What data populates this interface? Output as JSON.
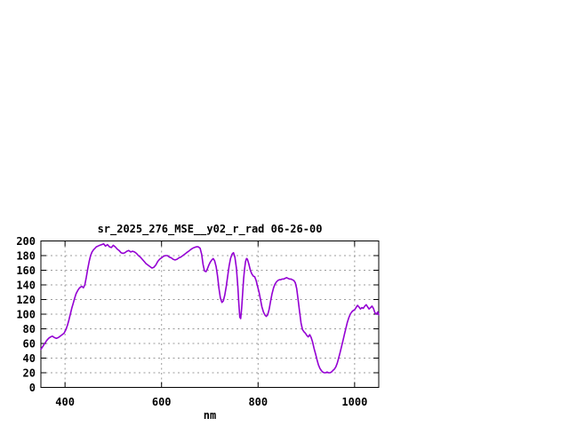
{
  "window": {
    "background": "#ffffff"
  },
  "chart_data": {
    "type": "line",
    "title": "sr_2025_276_MSE__y02_r_rad 06-26-00",
    "xlabel": "nm",
    "ylabel": "",
    "xlim": [
      350,
      1050
    ],
    "ylim": [
      0,
      200
    ],
    "xticks": [
      400,
      600,
      800,
      1000
    ],
    "yticks": [
      0,
      20,
      40,
      60,
      80,
      100,
      120,
      140,
      160,
      180,
      200
    ],
    "grid": true,
    "legend_position": "none",
    "line_color": "#9400d3",
    "grid_color": "#9b9b9b",
    "axis_color": "#000000",
    "background_color": "#ffffff",
    "series": [
      {
        "name": "sr_2025_276_MSE__y02_r_rad 06-26-00",
        "x": [
          350,
          354,
          358,
          362,
          366,
          370,
          374,
          378,
          382,
          386,
          390,
          394,
          398,
          402,
          405,
          408,
          411,
          414,
          417,
          420,
          423,
          426,
          429,
          432,
          435,
          438,
          441,
          444,
          447,
          450,
          453,
          456,
          459,
          462,
          465,
          468,
          472,
          476,
          480,
          484,
          488,
          492,
          496,
          500,
          504,
          508,
          512,
          516,
          520,
          524,
          528,
          532,
          536,
          540,
          544,
          548,
          552,
          556,
          560,
          564,
          568,
          572,
          576,
          580,
          584,
          588,
          592,
          596,
          600,
          604,
          608,
          612,
          616,
          620,
          624,
          628,
          632,
          636,
          640,
          644,
          648,
          652,
          656,
          660,
          664,
          668,
          672,
          676,
          680,
          683,
          686,
          689,
          692,
          695,
          698,
          701,
          704,
          707,
          710,
          713,
          716,
          719,
          722,
          725,
          728,
          731,
          734,
          737,
          740,
          743,
          746,
          749,
          752,
          755,
          758,
          760,
          762,
          764,
          766,
          768,
          770,
          772,
          774,
          776,
          778,
          781,
          784,
          787,
          790,
          793,
          796,
          799,
          802,
          805,
          808,
          811,
          814,
          817,
          820,
          823,
          826,
          829,
          832,
          835,
          838,
          841,
          844,
          847,
          850,
          853,
          856,
          859,
          862,
          865,
          868,
          871,
          874,
          877,
          880,
          883,
          886,
          889,
          892,
          895,
          898,
          901,
          904,
          907,
          910,
          913,
          916,
          919,
          922,
          925,
          928,
          931,
          934,
          937,
          940,
          943,
          946,
          949,
          952,
          955,
          958,
          961,
          964,
          967,
          970,
          973,
          976,
          979,
          982,
          985,
          988,
          991,
          994,
          997,
          1000,
          1003,
          1006,
          1009,
          1012,
          1015,
          1018,
          1021,
          1024,
          1027,
          1030,
          1033,
          1036,
          1039,
          1042,
          1045,
          1048,
          1050
        ],
        "y": [
          52,
          56,
          60,
          64,
          67,
          69,
          70,
          68,
          67,
          68,
          70,
          72,
          74,
          79,
          85,
          92,
          100,
          108,
          115,
          122,
          128,
          132,
          135,
          137,
          138,
          136,
          140,
          150,
          162,
          172,
          180,
          185,
          188,
          190,
          192,
          193,
          194,
          195,
          196,
          193,
          195,
          192,
          191,
          194,
          192,
          189,
          187,
          184,
          183,
          184,
          186,
          187,
          185,
          186,
          185,
          183,
          180,
          178,
          175,
          172,
          169,
          167,
          165,
          163,
          164,
          167,
          172,
          175,
          177,
          179,
          180,
          180,
          178,
          177,
          175,
          174,
          175,
          177,
          178,
          180,
          182,
          184,
          186,
          188,
          190,
          191,
          192,
          192,
          190,
          182,
          168,
          159,
          158,
          162,
          167,
          171,
          174,
          176,
          173,
          165,
          152,
          135,
          122,
          116,
          118,
          126,
          138,
          152,
          166,
          176,
          182,
          184,
          178,
          163,
          138,
          115,
          96,
          94,
          108,
          128,
          148,
          162,
          172,
          176,
          175,
          168,
          160,
          155,
          152,
          151,
          146,
          138,
          130,
          120,
          110,
          103,
          99,
          97,
          99,
          107,
          118,
          128,
          136,
          141,
          144,
          146,
          147,
          147,
          148,
          148,
          149,
          150,
          149,
          148,
          148,
          147,
          146,
          143,
          135,
          120,
          103,
          88,
          79,
          76,
          74,
          71,
          69,
          72,
          68,
          62,
          53,
          46,
          38,
          31,
          26,
          23,
          21,
          20,
          20,
          21,
          20,
          20,
          21,
          23,
          25,
          28,
          33,
          40,
          48,
          56,
          64,
          73,
          81,
          89,
          95,
          100,
          103,
          105,
          106,
          109,
          112,
          110,
          107,
          109,
          108,
          111,
          113,
          110,
          107,
          109,
          111,
          108,
          102,
          100,
          103,
          99
        ]
      }
    ]
  }
}
